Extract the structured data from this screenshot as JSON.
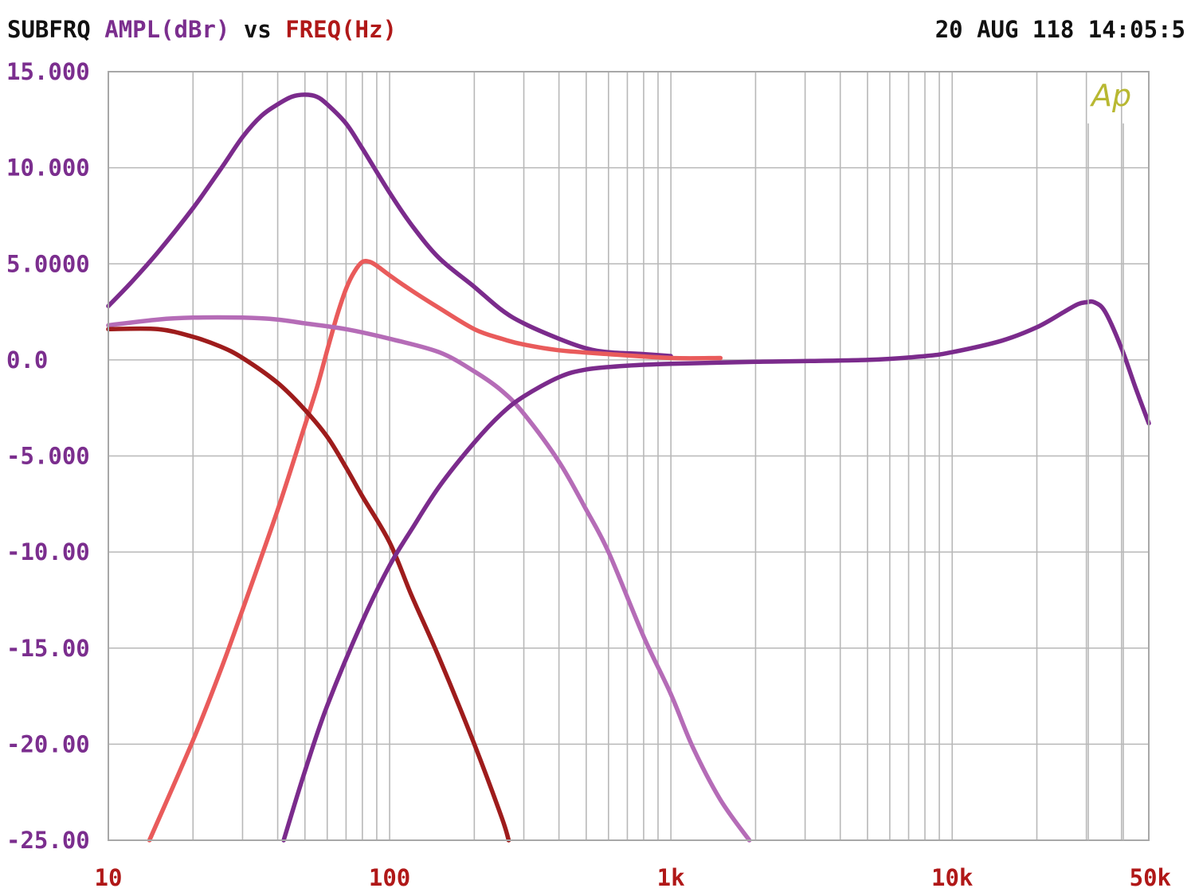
{
  "header": {
    "prefix": "SUBFRQ",
    "y_name": "AMPL(dBr)",
    "vs": "vs",
    "x_name": "FREQ(Hz)",
    "timestamp": "20 AUG 118 14:05:5"
  },
  "logo_text": "Ap",
  "colors": {
    "text_dark": "#111111",
    "y_label": "#7b2e8e",
    "x_label": "#b01818",
    "logo": "#b8b832",
    "grid": "#b8b8b8"
  },
  "chart_data": {
    "type": "line",
    "x_scale": "log",
    "xlim": [
      10,
      50000
    ],
    "ylim": [
      -25,
      15
    ],
    "grid": true,
    "x_ticks": [
      {
        "value": 10,
        "label": "10"
      },
      {
        "value": 100,
        "label": "100"
      },
      {
        "value": 1000,
        "label": "1k"
      },
      {
        "value": 10000,
        "label": "10k"
      },
      {
        "value": 50000,
        "label": "50k"
      }
    ],
    "y_ticks": [
      {
        "value": 15,
        "label": "15.000"
      },
      {
        "value": 10,
        "label": "10.000"
      },
      {
        "value": 5,
        "label": "5.0000"
      },
      {
        "value": 0,
        "label": "0.0"
      },
      {
        "value": -5,
        "label": "-5.000"
      },
      {
        "value": -10,
        "label": "-10.00"
      },
      {
        "value": -15,
        "label": "-15.00"
      },
      {
        "value": -20,
        "label": "-20.00"
      },
      {
        "value": -25,
        "label": "-25.00"
      }
    ],
    "series": [
      {
        "color": "#7b2b8c",
        "points": [
          [
            10,
            2.8
          ],
          [
            12,
            4.0
          ],
          [
            15,
            5.6
          ],
          [
            20,
            7.9
          ],
          [
            25,
            9.9
          ],
          [
            30,
            11.6
          ],
          [
            35,
            12.7
          ],
          [
            40,
            13.3
          ],
          [
            45,
            13.7
          ],
          [
            50,
            13.8
          ],
          [
            55,
            13.7
          ],
          [
            60,
            13.3
          ],
          [
            70,
            12.3
          ],
          [
            80,
            11.0
          ],
          [
            100,
            8.7
          ],
          [
            120,
            7.0
          ],
          [
            150,
            5.3
          ],
          [
            200,
            3.8
          ],
          [
            250,
            2.6
          ],
          [
            300,
            1.9
          ],
          [
            400,
            1.1
          ],
          [
            500,
            0.6
          ],
          [
            600,
            0.4
          ],
          [
            800,
            0.3
          ],
          [
            1000,
            0.2
          ]
        ]
      },
      {
        "color": "#e95b5b",
        "points": [
          [
            14,
            -25
          ],
          [
            20,
            -19.8
          ],
          [
            25,
            -16.2
          ],
          [
            30,
            -13.0
          ],
          [
            40,
            -7.8
          ],
          [
            50,
            -3.4
          ],
          [
            55,
            -1.5
          ],
          [
            60,
            0.5
          ],
          [
            65,
            2.3
          ],
          [
            70,
            3.7
          ],
          [
            75,
            4.6
          ],
          [
            80,
            5.1
          ],
          [
            85,
            5.1
          ],
          [
            90,
            4.9
          ],
          [
            100,
            4.4
          ],
          [
            120,
            3.6
          ],
          [
            150,
            2.7
          ],
          [
            200,
            1.6
          ],
          [
            250,
            1.1
          ],
          [
            300,
            0.8
          ],
          [
            400,
            0.5
          ],
          [
            600,
            0.3
          ],
          [
            1000,
            0.1
          ],
          [
            1500,
            0.1
          ]
        ]
      },
      {
        "color": "#b56cb7",
        "points": [
          [
            10,
            1.8
          ],
          [
            15,
            2.1
          ],
          [
            20,
            2.2
          ],
          [
            30,
            2.2
          ],
          [
            40,
            2.1
          ],
          [
            50,
            1.9
          ],
          [
            70,
            1.6
          ],
          [
            100,
            1.1
          ],
          [
            150,
            0.4
          ],
          [
            200,
            -0.6
          ],
          [
            250,
            -1.6
          ],
          [
            300,
            -2.8
          ],
          [
            400,
            -5.3
          ],
          [
            500,
            -7.8
          ],
          [
            600,
            -10.0
          ],
          [
            800,
            -14.4
          ],
          [
            1000,
            -17.4
          ],
          [
            1200,
            -20.2
          ],
          [
            1500,
            -22.9
          ],
          [
            1900,
            -25
          ]
        ]
      },
      {
        "color": "#9e1c1c",
        "points": [
          [
            10,
            1.6
          ],
          [
            15,
            1.6
          ],
          [
            20,
            1.2
          ],
          [
            25,
            0.7
          ],
          [
            30,
            0.1
          ],
          [
            40,
            -1.2
          ],
          [
            50,
            -2.6
          ],
          [
            60,
            -4.0
          ],
          [
            70,
            -5.6
          ],
          [
            80,
            -7.1
          ],
          [
            100,
            -9.5
          ],
          [
            120,
            -12.3
          ],
          [
            150,
            -15.5
          ],
          [
            200,
            -20.0
          ],
          [
            250,
            -23.8
          ],
          [
            265,
            -25
          ]
        ]
      },
      {
        "color": "#7b2b8c",
        "points": [
          [
            42,
            -25
          ],
          [
            50,
            -21.4
          ],
          [
            60,
            -18.0
          ],
          [
            80,
            -13.6
          ],
          [
            100,
            -10.7
          ],
          [
            120,
            -8.8
          ],
          [
            150,
            -6.6
          ],
          [
            200,
            -4.3
          ],
          [
            250,
            -2.8
          ],
          [
            300,
            -1.9
          ],
          [
            400,
            -0.9
          ],
          [
            500,
            -0.5
          ],
          [
            700,
            -0.3
          ],
          [
            1000,
            -0.2
          ],
          [
            2000,
            -0.1
          ],
          [
            5000,
            0.0
          ],
          [
            8000,
            0.2
          ],
          [
            10000,
            0.4
          ],
          [
            15000,
            1.0
          ],
          [
            20000,
            1.7
          ],
          [
            25000,
            2.5
          ],
          [
            28000,
            2.9
          ],
          [
            30000,
            3.0
          ],
          [
            32000,
            3.0
          ],
          [
            35000,
            2.5
          ],
          [
            40000,
            0.6
          ],
          [
            45000,
            -1.5
          ],
          [
            50000,
            -3.3
          ]
        ]
      }
    ]
  }
}
